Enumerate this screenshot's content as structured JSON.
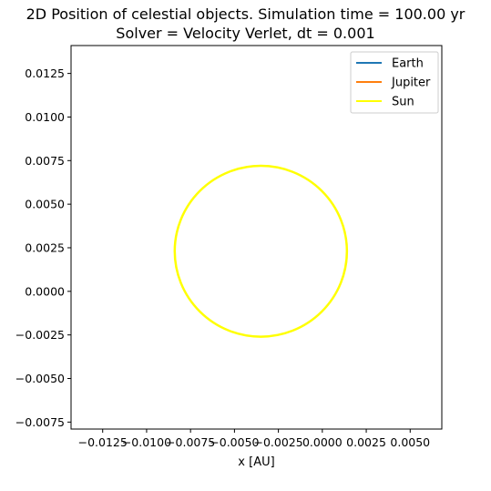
{
  "chart_data": {
    "type": "line",
    "title": "2D Position of celestial objects. Simulation time = 100.00 yr",
    "subtitle": "Solver = Velocity Verlet,  dt = 0.001",
    "xlabel": "x [AU]",
    "ylabel": "",
    "xlim": [
      -0.0143,
      0.0068
    ],
    "ylim": [
      -0.0079,
      0.0141
    ],
    "x_ticks": [
      -0.0125,
      -0.01,
      -0.0075,
      -0.005,
      -0.0025,
      0.0,
      0.0025,
      0.005
    ],
    "x_tick_labels": [
      "−0.0125",
      "−0.0100",
      "−0.0075",
      "−0.0050",
      "−0.0025",
      "0.0000",
      "0.0025",
      "0.0050"
    ],
    "y_ticks": [
      -0.0075,
      -0.005,
      -0.0025,
      0.0,
      0.0025,
      0.005,
      0.0075,
      0.01,
      0.0125
    ],
    "y_tick_labels": [
      "−0.0075",
      "−0.0050",
      "−0.0025",
      "0.0000",
      "0.0025",
      "0.0050",
      "0.0075",
      "0.0100",
      "0.0125"
    ],
    "grid": false,
    "legend_position": "top-right",
    "series": [
      {
        "name": "Earth",
        "color": "#1f77b4",
        "points": []
      },
      {
        "name": "Jupiter",
        "color": "#ff7f0e",
        "points": []
      },
      {
        "name": "Sun",
        "color": "#ffff00",
        "orbit": {
          "center": [
            -0.0035,
            0.0023
          ],
          "radius": 0.0049
        }
      }
    ]
  }
}
